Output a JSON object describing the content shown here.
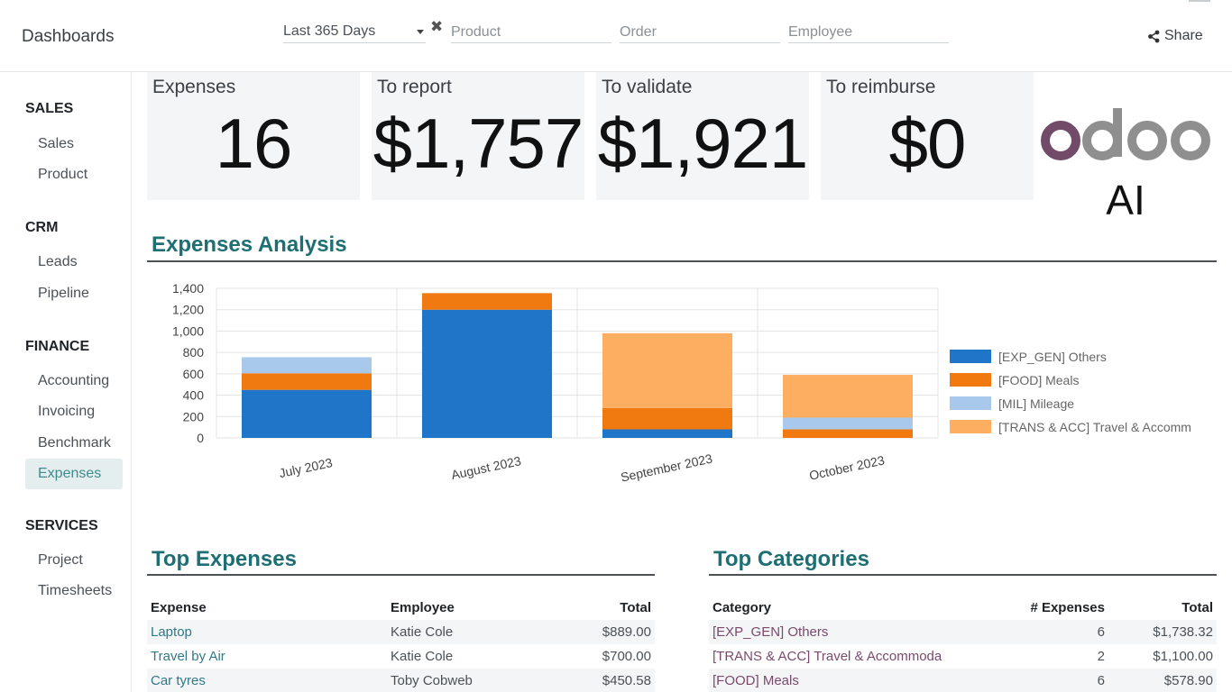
{
  "header": {
    "brand": "Dashboards",
    "date_filter": "Last 365 Days",
    "filters": [
      {
        "placeholder": "Product"
      },
      {
        "placeholder": "Order"
      },
      {
        "placeholder": "Employee"
      }
    ],
    "share_label": "Share"
  },
  "sidebar": {
    "sections": [
      {
        "title": "SALES",
        "items": [
          "Sales",
          "Product"
        ]
      },
      {
        "title": "CRM",
        "items": [
          "Leads",
          "Pipeline"
        ]
      },
      {
        "title": "FINANCE",
        "items": [
          "Accounting",
          "Invoicing",
          "Benchmark",
          "Expenses"
        ]
      },
      {
        "title": "SERVICES",
        "items": [
          "Project",
          "Timesheets"
        ]
      }
    ],
    "active_item": "Expenses"
  },
  "kpis": [
    {
      "label": "Expenses",
      "value": "16"
    },
    {
      "label": "To report",
      "value": "$1,757"
    },
    {
      "label": "To validate",
      "value": "$1,921"
    },
    {
      "label": "To reimburse",
      "value": "$0"
    }
  ],
  "logo": {
    "word": "odoo",
    "suffix": "AI"
  },
  "sections": {
    "expenses_analysis": "Expenses Analysis",
    "top_expenses": "Top Expenses",
    "top_categories": "Top Categories"
  },
  "chart_data": {
    "type": "bar",
    "stacked": true,
    "categories": [
      "July 2023",
      "August 2023",
      "September 2023",
      "October 2023"
    ],
    "series": [
      {
        "name": "[EXP_GEN] Others",
        "color": "#1f76c8",
        "values": [
          450,
          1200,
          80,
          0
        ]
      },
      {
        "name": "[FOOD] Meals",
        "color": "#f07a10",
        "values": [
          155,
          155,
          200,
          80
        ]
      },
      {
        "name": "[MIL] Mileage",
        "color": "#a8c8ec",
        "values": [
          150,
          0,
          0,
          110
        ]
      },
      {
        "name": "[TRANS & ACC] Travel & Accomm",
        "color": "#fdae61",
        "values": [
          0,
          0,
          700,
          400
        ]
      }
    ],
    "yticks": [
      0,
      200,
      400,
      600,
      800,
      "1,000",
      "1,200",
      "1,400"
    ],
    "ylim": [
      0,
      1400
    ],
    "grid": true,
    "legend": "right"
  },
  "top_expenses": {
    "columns": [
      "Expense",
      "Employee",
      "Total"
    ],
    "rows": [
      [
        "Laptop",
        "Katie Cole",
        "$889.00"
      ],
      [
        "Travel by Air",
        "Katie Cole",
        "$700.00"
      ],
      [
        "Car tyres",
        "Toby Cobweb",
        "$450.58"
      ]
    ]
  },
  "top_categories": {
    "columns": [
      "Category",
      "# Expenses",
      "Total"
    ],
    "rows": [
      [
        "[EXP_GEN] Others",
        "6",
        "$1,738.32"
      ],
      [
        "[TRANS & ACC] Travel & Accommoda",
        "2",
        "$1,100.00"
      ],
      [
        "[FOOD] Meals",
        "6",
        "$578.90"
      ]
    ]
  }
}
